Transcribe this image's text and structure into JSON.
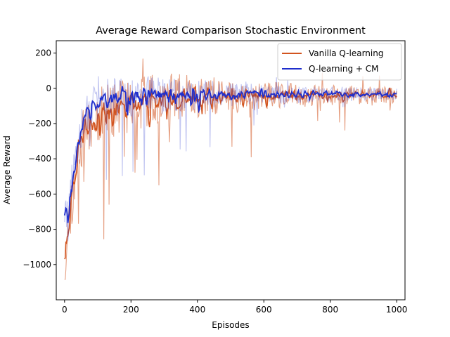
{
  "chart_data": {
    "type": "line",
    "title": "Average Reward Comparison Stochastic Environment",
    "xlabel": "Episodes",
    "ylabel": "Average Reward",
    "xlim": [
      -25,
      1025
    ],
    "ylim": [
      -1200,
      270
    ],
    "xticks": [
      0,
      200,
      400,
      600,
      800,
      1000
    ],
    "yticks": [
      200,
      0,
      -200,
      -400,
      -600,
      -800,
      -1000
    ],
    "ytick_labels": [
      "200",
      "0",
      "−200",
      "−400",
      "−600",
      "−800",
      "−1000"
    ],
    "grid": false,
    "legend_position": "top-right",
    "series": [
      {
        "name": "Vanilla Q-learning",
        "color": "#d2541f",
        "x": [
          0,
          5,
          10,
          20,
          30,
          40,
          50,
          60,
          80,
          100,
          120,
          150,
          180,
          200,
          250,
          300,
          350,
          400,
          450,
          500,
          600,
          700,
          800,
          900,
          1000
        ],
        "values": [
          -1000,
          -870,
          -800,
          -650,
          -520,
          -380,
          -300,
          -260,
          -200,
          -160,
          -140,
          -120,
          -110,
          -100,
          -80,
          -70,
          -55,
          -50,
          -45,
          -45,
          -40,
          -40,
          -40,
          -38,
          -35
        ]
      },
      {
        "name": "Q-learning + CM",
        "color": "#1f2ecc",
        "x": [
          0,
          5,
          10,
          20,
          30,
          40,
          50,
          60,
          80,
          100,
          120,
          150,
          180,
          200,
          250,
          300,
          350,
          400,
          450,
          500,
          600,
          700,
          800,
          900,
          1000
        ],
        "values": [
          -700,
          -720,
          -760,
          -560,
          -460,
          -330,
          -240,
          -170,
          -100,
          -80,
          -60,
          -50,
          -45,
          -45,
          -40,
          -38,
          -38,
          -36,
          -35,
          -35,
          -34,
          -33,
          -33,
          -33,
          -32
        ]
      }
    ]
  }
}
